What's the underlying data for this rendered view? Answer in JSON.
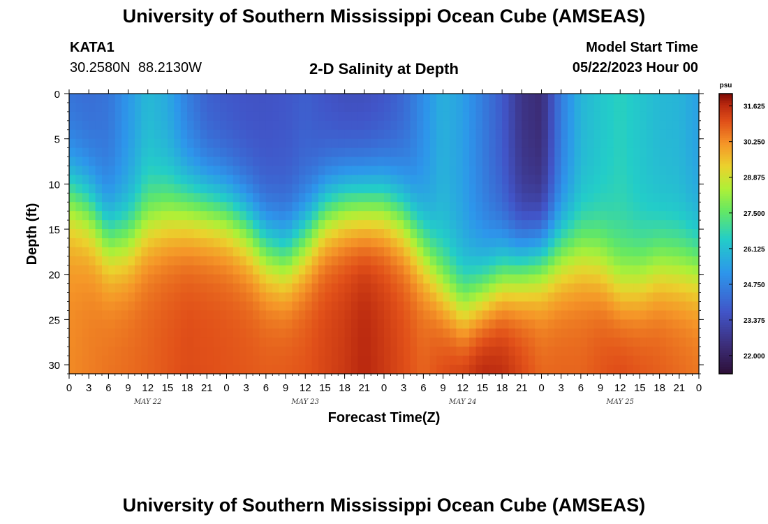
{
  "page_title": "University of Southern Mississippi Ocean Cube (AMSEAS)",
  "footer_title": "University of Southern Mississippi Ocean Cube (AMSEAS)",
  "station": {
    "id": "KATA1",
    "coords": "30.2580N  88.2130W"
  },
  "model": {
    "label": "Model Start Time",
    "start": "05/22/2023 Hour 00"
  },
  "chart_data": {
    "type": "heatmap",
    "title": "2-D Salinity at Depth",
    "xlabel": "Forecast Time(Z)",
    "ylabel": "Depth (ft)",
    "xlim": [
      0,
      96
    ],
    "ylim": [
      0,
      31
    ],
    "x_tick_hours": [
      0,
      3,
      6,
      9,
      12,
      15,
      18,
      21,
      24,
      27,
      30,
      33,
      36,
      39,
      42,
      45,
      48,
      51,
      54,
      57,
      60,
      63,
      66,
      69,
      72,
      75,
      78,
      81,
      84,
      87,
      90,
      93,
      96
    ],
    "x_tick_labels": [
      "0",
      "3",
      "6",
      "9",
      "12",
      "15",
      "18",
      "21",
      "0",
      "3",
      "6",
      "9",
      "12",
      "15",
      "18",
      "21",
      "0",
      "3",
      "6",
      "9",
      "12",
      "15",
      "18",
      "21",
      "0",
      "3",
      "6",
      "9",
      "12",
      "15",
      "18",
      "21",
      "0"
    ],
    "day_labels": [
      {
        "hour": 12,
        "label": "MAY 22"
      },
      {
        "hour": 36,
        "label": "MAY 23"
      },
      {
        "hour": 60,
        "label": "MAY 24"
      },
      {
        "hour": 84,
        "label": "MAY 25"
      }
    ],
    "y_ticks": [
      0,
      5,
      10,
      15,
      20,
      25,
      30
    ],
    "colorbar": {
      "unit": "psu",
      "min": 21.3,
      "max": 32.1,
      "ticks": [
        31.625,
        30.25,
        28.875,
        27.5,
        26.125,
        24.75,
        23.375,
        22.0
      ],
      "tick_labels": [
        "31.625",
        "30.250",
        "28.875",
        "27.500",
        "26.125",
        "24.750",
        "23.375",
        "22.000"
      ]
    },
    "halocline_depth_ft": {
      "hours": [
        0,
        3,
        6,
        9,
        12,
        15,
        18,
        21,
        24,
        27,
        30,
        33,
        36,
        39,
        42,
        45,
        48,
        51,
        54,
        57,
        60,
        63,
        66,
        69,
        72,
        75,
        78,
        81,
        84,
        87,
        90,
        93,
        96
      ],
      "depth": [
        11,
        12.5,
        16,
        16,
        14,
        13,
        12.5,
        12.5,
        13,
        14.5,
        17,
        18,
        16,
        13,
        12,
        12,
        12,
        13.5,
        17,
        21,
        23.5,
        22,
        20,
        19,
        18,
        17.5,
        17.5,
        18.5,
        21,
        20.5,
        19,
        19,
        19
      ]
    },
    "surface_salinity_psu": {
      "hours": [
        0,
        3,
        6,
        9,
        12,
        15,
        18,
        21,
        24,
        27,
        30,
        33,
        36,
        39,
        42,
        45,
        48,
        51,
        54,
        57,
        60,
        63,
        66,
        69,
        72,
        75,
        78,
        81,
        84,
        87,
        90,
        93,
        96
      ],
      "value": [
        24.3,
        24.2,
        24.4,
        25.2,
        26.0,
        25.6,
        24.6,
        23.9,
        23.7,
        23.6,
        23.6,
        23.7,
        23.9,
        23.6,
        23.4,
        23.4,
        23.6,
        24.1,
        25.0,
        25.8,
        25.4,
        24.6,
        23.8,
        22.6,
        22.3,
        24.6,
        25.9,
        26.3,
        26.6,
        26.3,
        26.0,
        25.9,
        25.4
      ]
    },
    "bottom_salinity_psu": {
      "hours": [
        0,
        6,
        12,
        18,
        24,
        30,
        36,
        42,
        45,
        48,
        54,
        60,
        63,
        66,
        72,
        78,
        84,
        90,
        96
      ],
      "value": [
        30.3,
        30.6,
        30.8,
        31.1,
        31.0,
        30.9,
        31.0,
        31.4,
        31.7,
        31.4,
        30.8,
        31.6,
        31.9,
        31.7,
        30.8,
        30.8,
        31.2,
        30.9,
        30.6
      ]
    }
  },
  "colors": {
    "background": "#ffffff",
    "frame": "#000000"
  }
}
